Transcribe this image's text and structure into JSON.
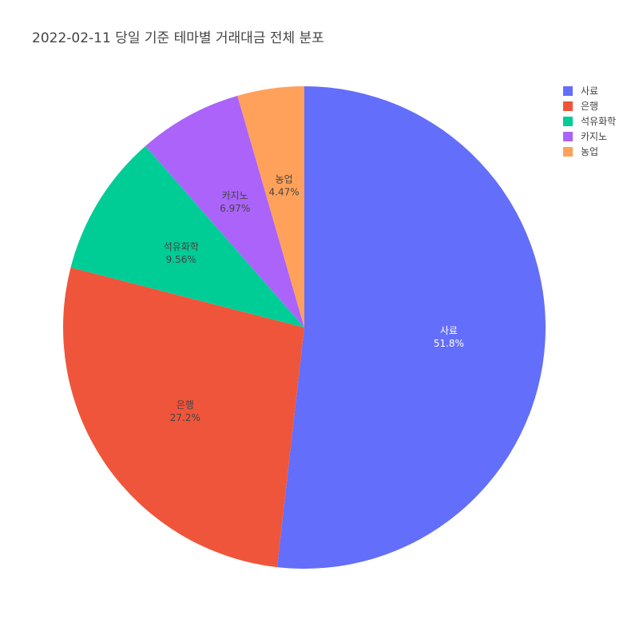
{
  "chart_data": {
    "type": "pie",
    "title": "2022-02-11 당일 기준 테마별 거래대금 전체 분포",
    "slices": [
      {
        "label": "사료",
        "percent_label": "51.8%",
        "value": 51.8,
        "color": "#636efa",
        "text_color": "#ffffff"
      },
      {
        "label": "은행",
        "percent_label": "27.2%",
        "value": 27.2,
        "color": "#ef553b",
        "text_color": "#444444"
      },
      {
        "label": "석유화학",
        "percent_label": "9.56%",
        "value": 9.56,
        "color": "#00cc96",
        "text_color": "#444444"
      },
      {
        "label": "카지노",
        "percent_label": "6.97%",
        "value": 6.97,
        "color": "#ab63fa",
        "text_color": "#444444"
      },
      {
        "label": "농업",
        "percent_label": "4.47%",
        "value": 4.47,
        "color": "#ffa15a",
        "text_color": "#444444"
      }
    ],
    "legend_position": "top-right",
    "direction": "clockwise",
    "start_angle": "12 o'clock"
  }
}
